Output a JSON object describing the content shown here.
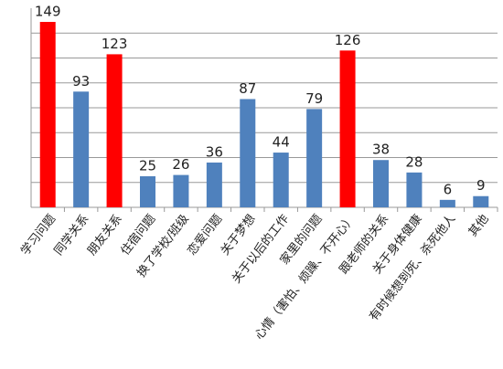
{
  "chart_data": {
    "type": "bar",
    "categories": [
      "学习问题",
      "同学关系",
      "朋友关系",
      "住宿问题",
      "换了学校/班级",
      "恋爱问题",
      "关于梦想",
      "关于以后的工作",
      "家里的问题",
      "心情（害怕、烦躁、不开心）",
      "跟老师的关系",
      "关于身体健康",
      "有时候想到死、杀死他人",
      "其他"
    ],
    "values": [
      149,
      93,
      123,
      25,
      26,
      36,
      87,
      44,
      79,
      126,
      38,
      28,
      6,
      9
    ],
    "colors": [
      "#ff0000",
      "#4f81bd",
      "#ff0000",
      "#4f81bd",
      "#4f81bd",
      "#4f81bd",
      "#4f81bd",
      "#4f81bd",
      "#4f81bd",
      "#ff0000",
      "#4f81bd",
      "#4f81bd",
      "#4f81bd",
      "#4f81bd"
    ],
    "ylim": [
      0,
      160
    ],
    "yticks": [
      0,
      20,
      40,
      60,
      80,
      100,
      120,
      140
    ],
    "show_ytick_labels": false,
    "grid": true
  }
}
